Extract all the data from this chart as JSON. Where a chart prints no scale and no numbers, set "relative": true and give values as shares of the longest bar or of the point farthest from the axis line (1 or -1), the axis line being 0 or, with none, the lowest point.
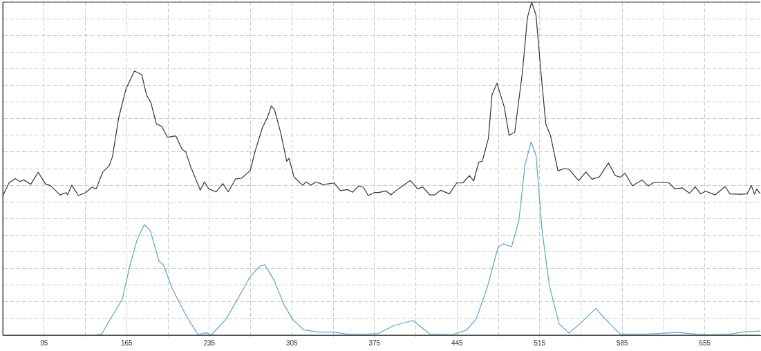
{
  "chart_data": {
    "type": "line",
    "relative": true,
    "legend": false,
    "grid": true,
    "marker": "none",
    "line_style": "solid",
    "xlim": [
      60,
      702
    ],
    "xticks": [
      95,
      {
        "value": 130,
        "label": null
      },
      165,
      {
        "value": 200,
        "label": null
      },
      235,
      {
        "value": 270,
        "label": null
      },
      305,
      {
        "value": 340,
        "label": null
      },
      375,
      {
        "value": 410,
        "label": null
      },
      445,
      {
        "value": 480,
        "label": null
      },
      515,
      {
        "value": 550,
        "label": null
      },
      585,
      {
        "value": 620,
        "label": null
      },
      655,
      {
        "value": 690,
        "label": null
      }
    ],
    "series": [
      {
        "color": "#333333",
        "x": [
          60,
          65.3,
          70.5,
          74.6,
          77.7,
          83.8,
          90,
          96.3,
          100.4,
          108.6,
          113.8,
          114.9,
          118.5,
          124.1,
          130.3,
          135.5,
          139.1,
          144.8,
          150,
          153,
          158.2,
          164.4,
          171.6,
          177.8,
          181.9,
          185.5,
          190.2,
          194.7,
          199.5,
          206.7,
          211.9,
          215,
          219.1,
          227.4,
          230.9,
          234.6,
          240.8,
          246.5,
          251.1,
          257.3,
          262.4,
          269.7,
          273.8,
          280,
          284.1,
          287.6,
          290.3,
          295.5,
          300.6,
          302.6,
          306.8,
          314.1,
          317.1,
          321.2,
          325.3,
          331.6,
          340.9,
          346,
          352.2,
          356.4,
          361.5,
          365.6,
          369.7,
          374.9,
          378.5,
          384.7,
          388.9,
          395.1,
          405.4,
          411.6,
          415.8,
          422,
          426.1,
          431.2,
          438.5,
          444.7,
          449.9,
          455.5,
          459.1,
          463.3,
          466.4,
          471.6,
          474.6,
          478.8,
          485,
          489.1,
          493.9,
          500.5,
          504.6,
          508.2,
          511.9,
          516,
          520.2,
          524.3,
          530.5,
          535.7,
          539.8,
          548,
          554.3,
          559.4,
          565.6,
          573.3,
          579.1,
          583.2,
          587.4,
          593.6,
          601.8,
          607,
          611.1,
          619.4,
          624.6,
          629.8,
          636,
          642.1,
          646.9,
          651.5,
          655.6,
          663.8,
          672.1,
          676.3,
          684.5,
          690.8,
          694.5,
          697,
          699,
          702
        ],
        "values": [
          0.418,
          0.457,
          0.47,
          0.461,
          0.466,
          0.453,
          0.489,
          0.453,
          0.449,
          0.421,
          0.428,
          0.421,
          0.45,
          0.419,
          0.428,
          0.444,
          0.439,
          0.49,
          0.507,
          0.536,
          0.652,
          0.739,
          0.793,
          0.782,
          0.72,
          0.699,
          0.634,
          0.627,
          0.594,
          0.598,
          0.558,
          0.551,
          0.507,
          0.435,
          0.46,
          0.439,
          0.43,
          0.455,
          0.43,
          0.469,
          0.471,
          0.494,
          0.551,
          0.623,
          0.652,
          0.688,
          0.677,
          0.608,
          0.522,
          0.531,
          0.475,
          0.45,
          0.46,
          0.45,
          0.46,
          0.452,
          0.457,
          0.434,
          0.437,
          0.429,
          0.448,
          0.444,
          0.419,
          0.428,
          0.428,
          0.433,
          0.421,
          0.439,
          0.464,
          0.439,
          0.445,
          0.421,
          0.421,
          0.435,
          0.424,
          0.457,
          0.457,
          0.479,
          0.463,
          0.519,
          0.522,
          0.591,
          0.721,
          0.757,
          0.685,
          0.6,
          0.609,
          0.793,
          0.953,
          1,
          0.961,
          0.793,
          0.634,
          0.598,
          0.493,
          0.5,
          0.498,
          0.464,
          0.49,
          0.468,
          0.475,
          0.517,
          0.479,
          0.474,
          0.486,
          0.448,
          0.466,
          0.448,
          0.457,
          0.459,
          0.457,
          0.439,
          0.442,
          0.426,
          0.445,
          0.424,
          0.432,
          0.421,
          0.446,
          0.424,
          0.423,
          0.424,
          0.449,
          0.423,
          0.439,
          0.424
        ]
      },
      {
        "color": "#5aa5c8",
        "x": [
          138.5,
          143.8,
          152,
          161.3,
          167.5,
          173.7,
          179.9,
          185,
          192.3,
          196.4,
          203.6,
          215,
          225.3,
          232.5,
          236.6,
          249,
          257.3,
          269.7,
          277.9,
          282.1,
          290.3,
          298.5,
          305.8,
          315,
          327.5,
          339.8,
          352.2,
          364.6,
          378.5,
          391,
          407.5,
          422,
          440.5,
          452.9,
          461.2,
          470.5,
          479.8,
          484,
          491.2,
          497.4,
          502.6,
          507.7,
          511.9,
          517,
          523.2,
          531.5,
          539.8,
          550.1,
          562.5,
          570.8,
          583.2,
          605.9,
          630.7,
          655.6,
          676.3,
          688.7,
          702
        ],
        "values": [
          0,
          0.003,
          0.053,
          0.108,
          0.205,
          0.285,
          0.332,
          0.314,
          0.223,
          0.209,
          0.14,
          0.061,
          0.002,
          0.007,
          0,
          0.047,
          0.097,
          0.176,
          0.207,
          0.211,
          0.162,
          0.09,
          0.047,
          0.016,
          0.009,
          0.009,
          0.003,
          0.002,
          0.005,
          0.028,
          0.044,
          0.003,
          0.001,
          0.015,
          0.048,
          0.142,
          0.265,
          0.274,
          0.265,
          0.344,
          0.511,
          0.58,
          0.54,
          0.316,
          0.149,
          0.034,
          0.006,
          0.037,
          0.08,
          0.048,
          0.003,
          0.003,
          0.008,
          0.001,
          0.003,
          0.01,
          0.012
        ]
      }
    ]
  }
}
